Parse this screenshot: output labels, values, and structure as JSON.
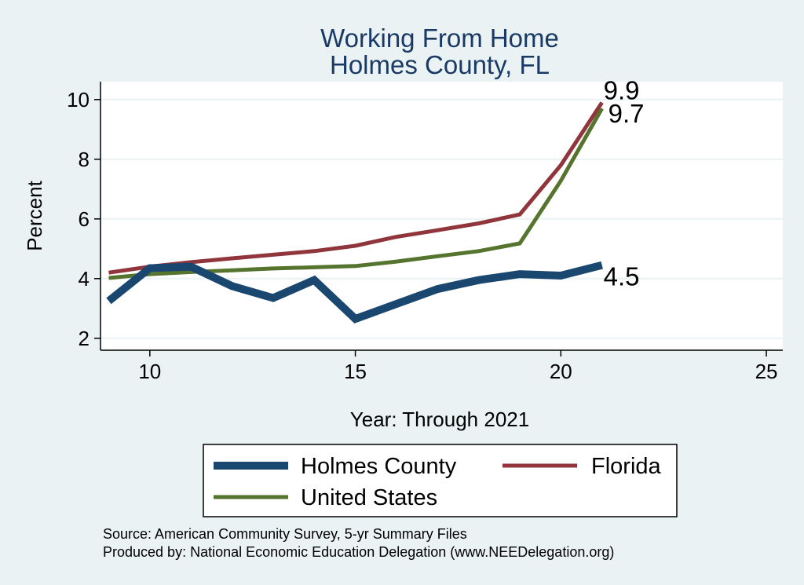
{
  "chart_data": {
    "type": "line",
    "title": [
      "Working From Home",
      "Holmes County, FL"
    ],
    "xlabel": "Year: Through 2021",
    "ylabel": "Percent",
    "xlim": [
      8.8,
      25.4
    ],
    "ylim": [
      1.6,
      10.6
    ],
    "xticks": [
      10,
      15,
      20,
      25
    ],
    "yticks": [
      2,
      4,
      6,
      8,
      10
    ],
    "grid": true,
    "legend_position": "bottom",
    "series": [
      {
        "name": "Holmes County",
        "color": "#1a476f",
        "x": [
          9,
          10,
          11,
          12,
          13,
          14,
          15,
          16,
          17,
          18,
          19,
          20,
          21
        ],
        "y": [
          3.25,
          4.35,
          4.4,
          3.75,
          3.35,
          3.95,
          2.65,
          3.15,
          3.65,
          3.95,
          4.15,
          4.1,
          4.45
        ],
        "end_label": "4.5"
      },
      {
        "name": "Florida",
        "color": "#90353b",
        "x": [
          9,
          10,
          11,
          12,
          13,
          14,
          15,
          16,
          17,
          18,
          19,
          20,
          21
        ],
        "y": [
          4.2,
          4.4,
          4.55,
          4.68,
          4.8,
          4.92,
          5.1,
          5.4,
          5.62,
          5.85,
          6.15,
          7.8,
          9.9
        ],
        "end_label": "9.9"
      },
      {
        "name": "United States",
        "color": "#55752f",
        "x": [
          9,
          10,
          11,
          12,
          13,
          14,
          15,
          16,
          17,
          18,
          19,
          20,
          21
        ],
        "y": [
          4.02,
          4.15,
          4.22,
          4.28,
          4.34,
          4.38,
          4.42,
          4.57,
          4.75,
          4.92,
          5.18,
          7.28,
          9.7
        ],
        "end_label": "9.7"
      }
    ]
  },
  "notes": [
    "Source: American Community Survey, 5-yr Summary Files",
    "Produced by: National Economic Education Delegation (www.NEEDelegation.org)"
  ]
}
